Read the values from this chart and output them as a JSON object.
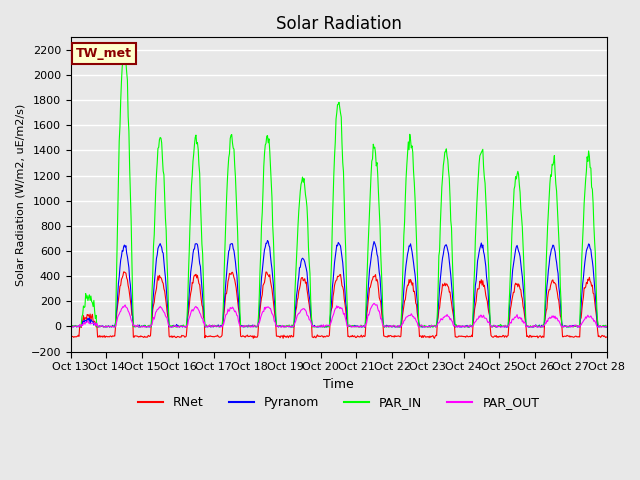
{
  "title": "Solar Radiation",
  "ylabel": "Solar Radiation (W/m2, uE/m2/s)",
  "xlabel": "Time",
  "ylim": [
    -200,
    2300
  ],
  "yticks": [
    -200,
    0,
    200,
    400,
    600,
    800,
    1000,
    1200,
    1400,
    1600,
    1800,
    2000,
    2200
  ],
  "xtick_labels": [
    "Oct 13",
    "Oct 14",
    "Oct 15",
    "Oct 16",
    "Oct 17",
    "Oct 18",
    "Oct 19",
    "Oct 20",
    "Oct 21",
    "Oct 22",
    "Oct 23",
    "Oct 24",
    "Oct 25",
    "Oct 26",
    "Oct 27",
    "Oct 28"
  ],
  "annotation_text": "TW_met",
  "annotation_bg": "#FFFFCC",
  "annotation_border": "#8B0000",
  "colors": {
    "RNet": "#FF0000",
    "Pyranom": "#0000FF",
    "PAR_IN": "#00FF00",
    "PAR_OUT": "#FF00FF"
  },
  "bg_color": "#E8E8E8",
  "plot_bg_color": "#E8E8E8",
  "grid_color": "#FFFFFF",
  "n_days": 15,
  "n_points_per_day": 48,
  "par_in_peaks": [
    250,
    2200,
    1500,
    1500,
    1520,
    1520,
    1200,
    1800,
    1430,
    1510,
    1400,
    1400,
    1220,
    1310,
    1350
  ],
  "pyranom_peaks": [
    50,
    650,
    660,
    660,
    660,
    680,
    540,
    660,
    660,
    640,
    640,
    650,
    630,
    640,
    650
  ],
  "rnet_peaks": [
    80,
    420,
    400,
    410,
    420,
    420,
    380,
    410,
    400,
    360,
    350,
    360,
    340,
    360,
    380
  ],
  "par_out_peaks": [
    30,
    160,
    150,
    155,
    150,
    155,
    140,
    160,
    175,
    90,
    85,
    85,
    75,
    80,
    80
  ]
}
